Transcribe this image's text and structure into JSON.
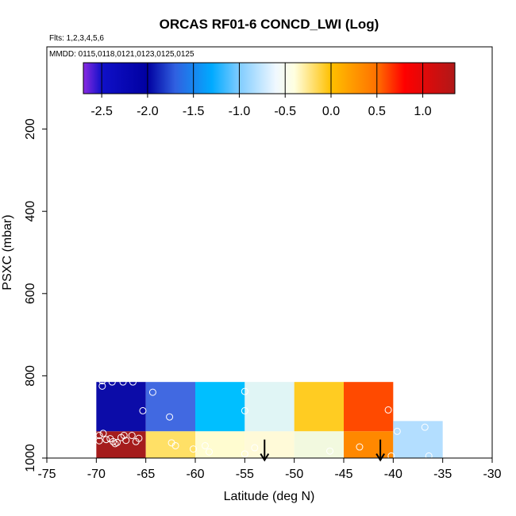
{
  "chart_data": {
    "type": "heatmap",
    "title": "ORCAS RF01-6 CONCD_LWI (Log)",
    "flights_note": "Flts: 1,2,3,4,5,6",
    "dates_note": "MMDD: 0115,0118,0121,0123,0125,0125",
    "xlabel": "Latitude (deg N)",
    "ylabel": "PSXC (mbar)",
    "xlim": [
      -75,
      -30
    ],
    "ylim": [
      1000,
      0
    ],
    "x_ticks": [
      -75,
      -70,
      -65,
      -60,
      -55,
      -50,
      -45,
      -40,
      -35,
      -30
    ],
    "y_ticks": [
      200,
      400,
      600,
      800,
      1000
    ],
    "colorbar": {
      "range": [
        -2.7,
        1.35
      ],
      "ticks": [
        -2.5,
        -2.0,
        -1.5,
        -1.0,
        -0.5,
        0.0,
        0.5,
        1.0
      ],
      "tick_labels": [
        "-2.5",
        "-2.0",
        "-1.5",
        "-1.0",
        "-0.5",
        "0.0",
        "0.5",
        "1.0"
      ],
      "stops": [
        {
          "v": -2.7,
          "color": "#8a2be2"
        },
        {
          "v": -2.5,
          "color": "#1010c8"
        },
        {
          "v": -2.0,
          "color": "#0000a0"
        },
        {
          "v": -1.7,
          "color": "#3060e0"
        },
        {
          "v": -1.3,
          "color": "#00aaff"
        },
        {
          "v": -1.0,
          "color": "#80ccff"
        },
        {
          "v": -0.6,
          "color": "#f0f8ff"
        },
        {
          "v": -0.4,
          "color": "#ffffe0"
        },
        {
          "v": 0.0,
          "color": "#ffc000"
        },
        {
          "v": 0.5,
          "color": "#ff7000"
        },
        {
          "v": 0.8,
          "color": "#ff0000"
        },
        {
          "v": 1.35,
          "color": "#b01818"
        }
      ]
    },
    "cells": [
      {
        "lat": [
          -70,
          -65
        ],
        "p": [
          815,
          935
        ],
        "value": -2.4,
        "color": "#0c0ca8"
      },
      {
        "lat": [
          -65,
          -60
        ],
        "p": [
          815,
          935
        ],
        "value": -1.7,
        "color": "#4169e1"
      },
      {
        "lat": [
          -60,
          -55
        ],
        "p": [
          815,
          935
        ],
        "value": -1.3,
        "color": "#00bfff"
      },
      {
        "lat": [
          -55,
          -50
        ],
        "p": [
          815,
          935
        ],
        "value": -0.6,
        "color": "#e0f5f5"
      },
      {
        "lat": [
          -50,
          -45
        ],
        "p": [
          815,
          935
        ],
        "value": 0.1,
        "color": "#ffcc22"
      },
      {
        "lat": [
          -45,
          -40
        ],
        "p": [
          815,
          935
        ],
        "value": 0.6,
        "color": "#ff4a00"
      },
      {
        "lat": [
          -70,
          -65
        ],
        "p": [
          935,
          1000
        ],
        "value": 1.2,
        "color": "#a51c1c"
      },
      {
        "lat": [
          -65,
          -60
        ],
        "p": [
          935,
          1000
        ],
        "value": -0.1,
        "color": "#ffe066"
      },
      {
        "lat": [
          -60,
          -55
        ],
        "p": [
          935,
          1000
        ],
        "value": -0.4,
        "color": "#fffcd0"
      },
      {
        "lat": [
          -55,
          -50
        ],
        "p": [
          935,
          1000
        ],
        "value": -0.4,
        "color": "#fffad8"
      },
      {
        "lat": [
          -50,
          -45
        ],
        "p": [
          935,
          1000
        ],
        "value": -0.5,
        "color": "#f2f9df"
      },
      {
        "lat": [
          -45,
          -40
        ],
        "p": [
          935,
          1000
        ],
        "value": 0.4,
        "color": "#ff8800"
      },
      {
        "lat": [
          -40,
          -35
        ],
        "p": [
          910,
          1000
        ],
        "value": -1.0,
        "color": "#b3deff"
      }
    ],
    "points": [
      [
        -69.4,
        825
      ],
      [
        -69.4,
        812
      ],
      [
        -68.4,
        815
      ],
      [
        -67.3,
        815
      ],
      [
        -66.3,
        815
      ],
      [
        -65.3,
        885
      ],
      [
        -64.3,
        840
      ],
      [
        -62.6,
        900
      ],
      [
        -69.7,
        945
      ],
      [
        -69.3,
        940
      ],
      [
        -69.7,
        958
      ],
      [
        -69.0,
        955
      ],
      [
        -68.6,
        953
      ],
      [
        -68.3,
        960
      ],
      [
        -68.1,
        965
      ],
      [
        -67.9,
        962
      ],
      [
        -67.5,
        950
      ],
      [
        -67.2,
        945
      ],
      [
        -67.0,
        957
      ],
      [
        -66.4,
        945
      ],
      [
        -66.0,
        960
      ],
      [
        -65.7,
        952
      ],
      [
        -62.4,
        963
      ],
      [
        -62.0,
        970
      ],
      [
        -60.2,
        978
      ],
      [
        -59.0,
        970
      ],
      [
        -58.6,
        985
      ],
      [
        -54.0,
        975
      ],
      [
        -55.0,
        838
      ],
      [
        -55.0,
        885
      ],
      [
        -55.0,
        990
      ],
      [
        -46.4,
        983
      ],
      [
        -43.4,
        973
      ],
      [
        -40.5,
        883
      ],
      [
        -39.6,
        935
      ],
      [
        -36.8,
        925
      ],
      [
        -40.2,
        995
      ],
      [
        -36.4,
        995
      ]
    ],
    "arrows": [
      {
        "lat": -53.0,
        "p_start": 955,
        "p_end": 1005
      },
      {
        "lat": -41.3,
        "p_start": 955,
        "p_end": 1005
      }
    ]
  }
}
